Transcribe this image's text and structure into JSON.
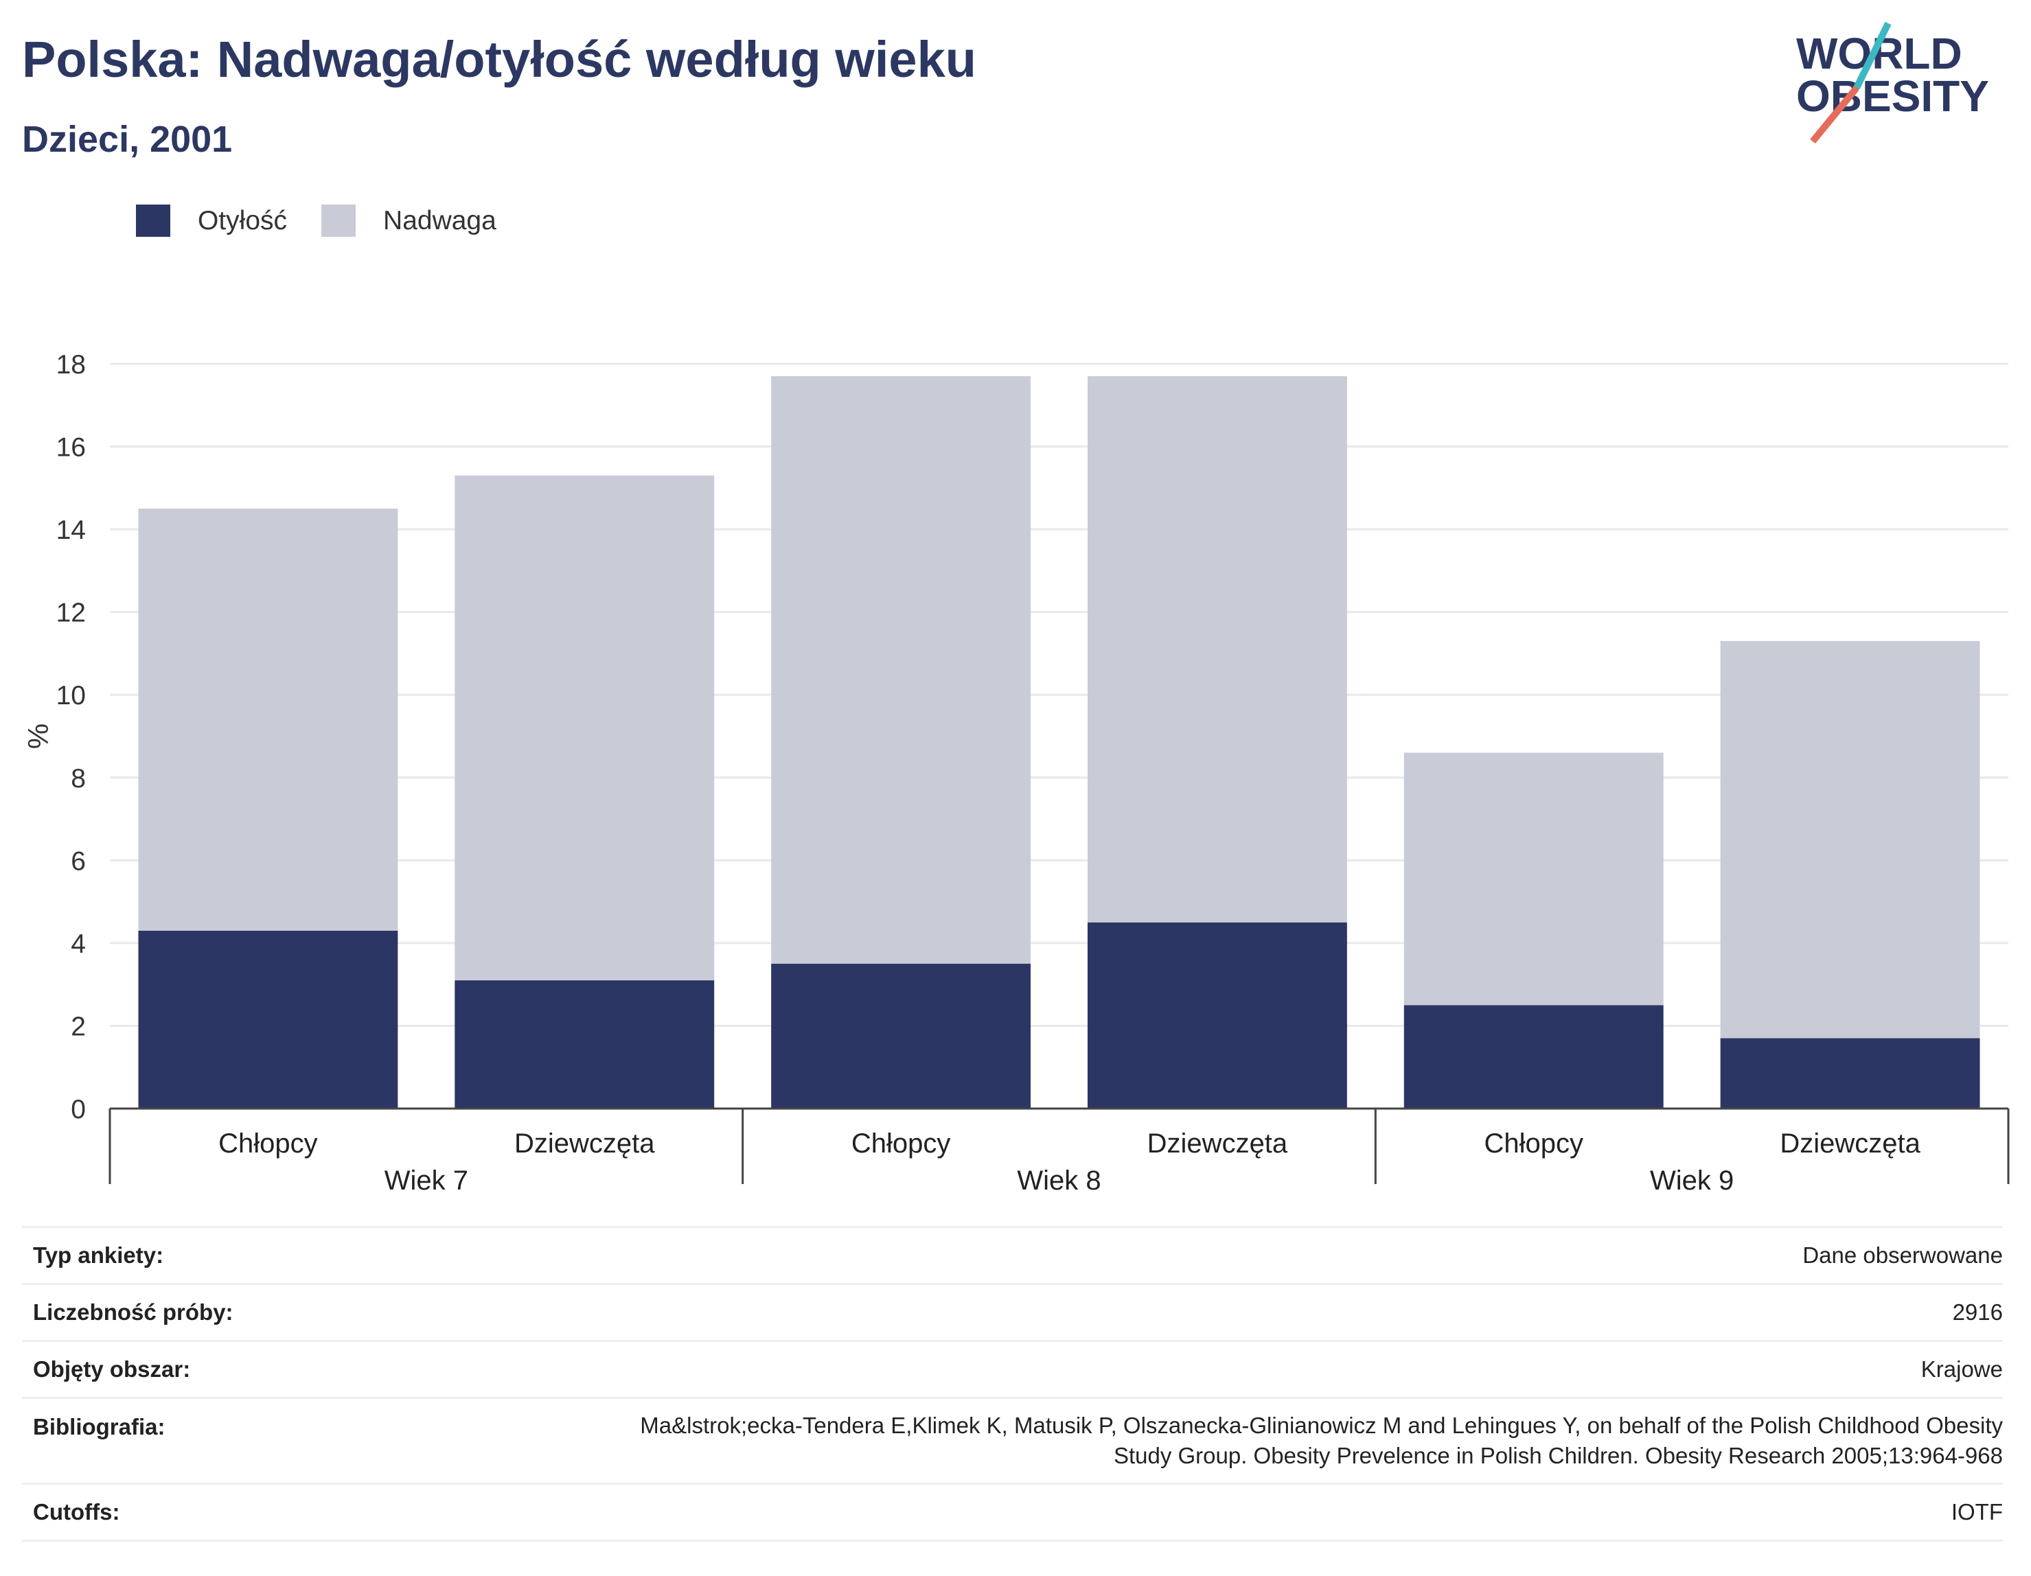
{
  "header": {
    "title": "Polska: Nadwaga/otyłość według wieku",
    "subtitle": "Dzieci, 2001"
  },
  "logo": {
    "line1": "WORLD",
    "line2": "OBESITY"
  },
  "legend": {
    "items": [
      {
        "label": "Otyłość",
        "color": "#2b3664"
      },
      {
        "label": "Nadwaga",
        "color": "#c9cbd7"
      }
    ]
  },
  "chart_data": {
    "type": "bar",
    "stacked": true,
    "ylabel": "%",
    "ylim": [
      0,
      18
    ],
    "yticks": [
      0,
      2,
      4,
      6,
      8,
      10,
      12,
      14,
      16,
      18
    ],
    "grid": true,
    "legend_position": "top-left",
    "groups": [
      "Wiek 7",
      "Wiek 8",
      "Wiek 9"
    ],
    "categories": [
      "Chłopcy",
      "Dziewczęta",
      "Chłopcy",
      "Dziewczęta",
      "Chłopcy",
      "Dziewczęta"
    ],
    "series": [
      {
        "name": "Otyłość",
        "color": "#2b3664",
        "values": [
          4.3,
          3.1,
          3.5,
          4.5,
          2.5,
          1.7
        ]
      },
      {
        "name": "Nadwaga",
        "color": "#c9cbd7",
        "values": [
          10.2,
          12.2,
          14.2,
          13.2,
          6.1,
          9.6
        ]
      }
    ]
  },
  "info": {
    "rows": [
      {
        "label": "Typ ankiety:",
        "value": "Dane obserwowane"
      },
      {
        "label": "Liczebność próby:",
        "value": "2916"
      },
      {
        "label": "Objęty obszar:",
        "value": "Krajowe"
      },
      {
        "label": "Bibliografia:",
        "value_lines": [
          "Ma&lstrok;ecka-Tendera E,Klimek K, Matusik P, Olszanecka-Glinianowicz M and Lehingues Y, on behalf of the Polish Childhood Obesity",
          "Study Group. Obesity Prevelence in Polish Children. Obesity Research 2005;13:964-968"
        ]
      },
      {
        "label": "Cutoffs:",
        "value": "IOTF"
      }
    ]
  }
}
